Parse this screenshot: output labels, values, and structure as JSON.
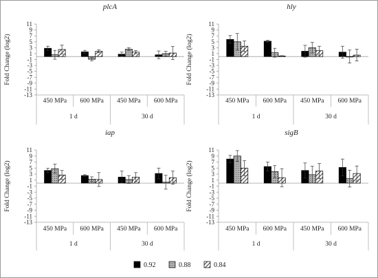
{
  "figure": {
    "legend": [
      {
        "label": "0.92",
        "pattern": "solid"
      },
      {
        "label": "0.88",
        "pattern": "gray-dots"
      },
      {
        "label": "0.84",
        "pattern": "white-hatch"
      }
    ]
  },
  "chart_data": [
    {
      "type": "bar",
      "title": "plcA",
      "ylabel": "Fold Change (log2)",
      "ylim": [
        -13,
        11
      ],
      "yticks": [
        -13,
        -11,
        -9,
        -7,
        -5,
        -3,
        -1,
        1,
        3,
        5,
        7,
        9,
        11
      ],
      "groups": [
        "1 d",
        "30 d"
      ],
      "categories": [
        "450 MPa",
        "600 MPa",
        "450 MPa",
        "600 MPa"
      ],
      "series": [
        {
          "name": "0.92",
          "values": [
            2.8,
            1.6,
            0.8,
            0.6
          ],
          "errors": [
            0.7,
            0.5,
            0.7,
            1.3
          ]
        },
        {
          "name": "0.88",
          "values": [
            0.6,
            -0.9,
            2.5,
            1.0
          ],
          "errors": [
            1.5,
            0.5,
            0.5,
            0.8
          ]
        },
        {
          "name": "0.84",
          "values": [
            2.4,
            1.8,
            1.5,
            1.2
          ],
          "errors": [
            1.5,
            0.5,
            0.5,
            2.2
          ]
        }
      ]
    },
    {
      "type": "bar",
      "title": "hly",
      "ylabel": "Fold Change (log2)",
      "ylim": [
        -13,
        11
      ],
      "yticks": [
        -13,
        -11,
        -9,
        -7,
        -5,
        -3,
        -1,
        1,
        3,
        5,
        7,
        9,
        11
      ],
      "groups": [
        "1 d",
        "30 d"
      ],
      "categories": [
        "450 MPa",
        "600 MPa",
        "450 MPa",
        "600 MPa"
      ],
      "series": [
        {
          "name": "0.92",
          "values": [
            5.8,
            5.2,
            1.8,
            1.5
          ],
          "errors": [
            1.3,
            0.3,
            2.0,
            2.0
          ]
        },
        {
          "name": "0.88",
          "values": [
            5.0,
            1.3,
            3.0,
            0.0
          ],
          "errors": [
            2.8,
            1.5,
            1.8,
            2.2
          ]
        },
        {
          "name": "0.84",
          "values": [
            3.5,
            0.2,
            2.0,
            0.5
          ],
          "errors": [
            1.8,
            0.1,
            1.5,
            2.0
          ]
        }
      ]
    },
    {
      "type": "bar",
      "title": "iap",
      "ylabel": "Fold Change (log2)",
      "ylim": [
        -13,
        11
      ],
      "yticks": [
        -13,
        -11,
        -9,
        -7,
        -5,
        -3,
        -1,
        1,
        3,
        5,
        7,
        9,
        11
      ],
      "groups": [
        "1 d",
        "30 d"
      ],
      "categories": [
        "450 MPa",
        "600 MPa",
        "450 MPa",
        "600 MPa"
      ],
      "series": [
        {
          "name": "0.92",
          "values": [
            4.2,
            2.5,
            2.0,
            3.2
          ],
          "errors": [
            0.7,
            0.3,
            2.0,
            1.8
          ]
        },
        {
          "name": "0.88",
          "values": [
            4.8,
            1.3,
            1.2,
            0.3
          ],
          "errors": [
            1.5,
            0.8,
            1.3,
            2.3
          ]
        },
        {
          "name": "0.84",
          "values": [
            2.7,
            1.2,
            2.0,
            1.8
          ],
          "errors": [
            1.5,
            2.3,
            1.5,
            2.2
          ]
        }
      ]
    },
    {
      "type": "bar",
      "title": "sigB",
      "ylabel": "Fold Change (log2)",
      "ylim": [
        -13,
        11
      ],
      "yticks": [
        -13,
        -11,
        -9,
        -7,
        -5,
        -3,
        -1,
        1,
        3,
        5,
        7,
        9,
        11
      ],
      "groups": [
        "1 d",
        "30 d"
      ],
      "categories": [
        "450 MPa",
        "600 MPa",
        "450 MPa",
        "600 MPa"
      ],
      "series": [
        {
          "name": "0.92",
          "values": [
            8.0,
            5.5,
            4.2,
            5.2
          ],
          "errors": [
            1.2,
            1.5,
            2.5,
            2.8
          ]
        },
        {
          "name": "0.88",
          "values": [
            9.0,
            3.8,
            2.8,
            1.5
          ],
          "errors": [
            1.8,
            2.0,
            2.8,
            2.8
          ]
        },
        {
          "name": "0.84",
          "values": [
            5.0,
            1.8,
            4.0,
            3.2
          ],
          "errors": [
            2.5,
            3.0,
            2.5,
            2.5
          ]
        }
      ]
    }
  ]
}
